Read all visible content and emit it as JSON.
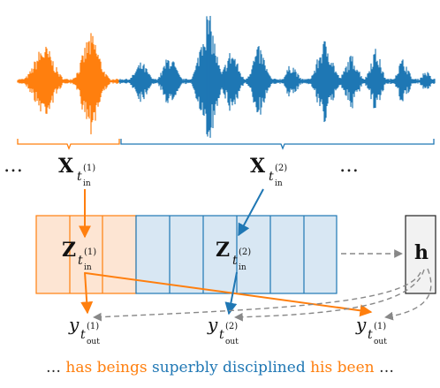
{
  "colors": {
    "orange": "#ff7f0e",
    "blue": "#1f77b4",
    "orange_fill": "#fde5d3",
    "blue_fill": "#d8e7f3",
    "gray": "#888888",
    "h_fill": "#f2f2f2"
  },
  "labels": {
    "ellipsis": "…",
    "x_symbol": "X",
    "z_symbol": "Z",
    "h_symbol": "h",
    "y_symbol": "y",
    "t_symbol": "t",
    "sub_in": "in",
    "sub_out": "out",
    "sup_1": "(1)",
    "sup_2": "(2)"
  },
  "caption": {
    "lead": "…",
    "words": [
      {
        "text": "has beings",
        "color": "orange"
      },
      {
        "text": "superbly disciplined",
        "color": "blue"
      },
      {
        "text": "his been",
        "color": "orange"
      }
    ],
    "trail": "…"
  }
}
